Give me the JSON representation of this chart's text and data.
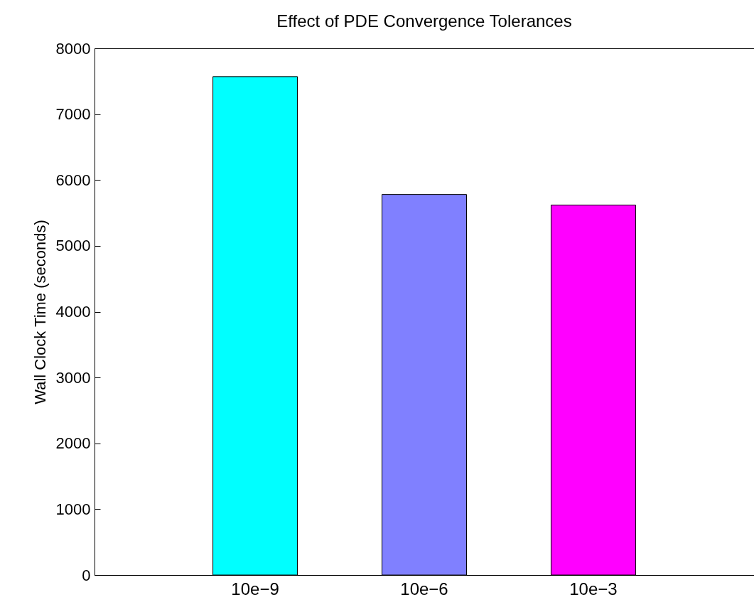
{
  "chart_data": {
    "type": "bar",
    "title": "Effect of PDE Convergence Tolerances",
    "ylabel": "Wall Clock Time (seconds)",
    "categories": [
      "10e−9",
      "10e−6",
      "10e−3"
    ],
    "values": [
      7570,
      5780,
      5620
    ],
    "colors": [
      "#00ffff",
      "#8080ff",
      "#ff00ff"
    ],
    "ylim": [
      0,
      8000
    ],
    "yticks": [
      0,
      1000,
      2000,
      3000,
      4000,
      5000,
      6000,
      7000,
      8000
    ],
    "grid": false
  }
}
